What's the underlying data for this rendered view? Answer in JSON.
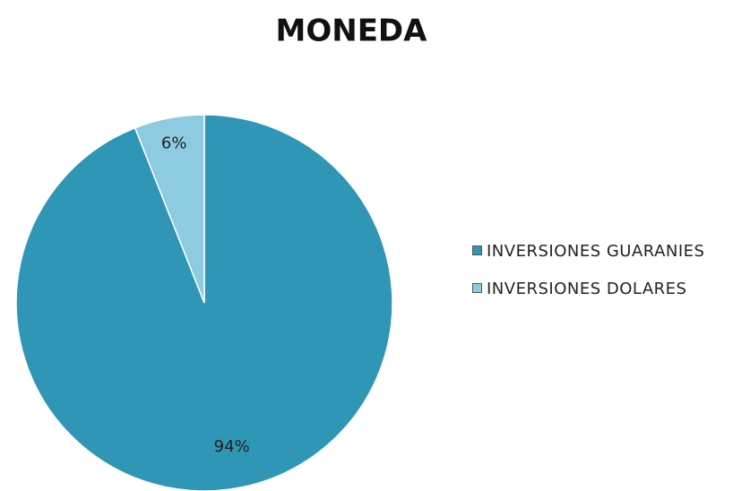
{
  "chart_data": {
    "type": "pie",
    "title": "MONEDA",
    "categories": [
      "INVERSIONES GUARANIES",
      "INVERSIONES DOLARES"
    ],
    "values": [
      94,
      6
    ],
    "value_labels": [
      "94%",
      "6%"
    ],
    "colors": [
      "#2f96b6",
      "#8dcbe0"
    ],
    "legend": "right"
  }
}
